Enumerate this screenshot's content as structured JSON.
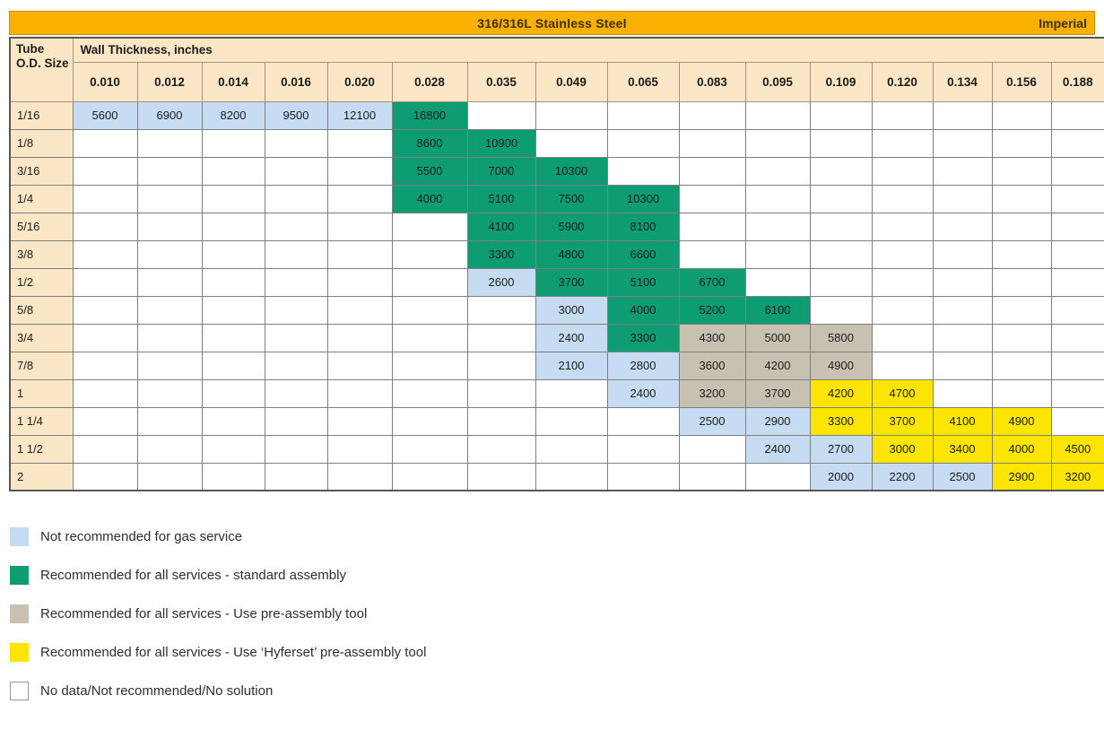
{
  "title_bar": {
    "title": "316/316L Stainless Steel",
    "units_label": "Imperial"
  },
  "table": {
    "corner_label": "Tube O.D. Size",
    "group_label": "Wall Thickness, inches",
    "columns": [
      "0.010",
      "0.012",
      "0.014",
      "0.016",
      "0.020",
      "0.028",
      "0.035",
      "0.049",
      "0.065",
      "0.083",
      "0.095",
      "0.109",
      "0.120",
      "0.134",
      "0.156",
      "0.188"
    ],
    "rows": [
      {
        "label": "1/16",
        "cells": [
          {
            "v": "5600",
            "t": "gas"
          },
          {
            "v": "6900",
            "t": "gas"
          },
          {
            "v": "8200",
            "t": "gas"
          },
          {
            "v": "9500",
            "t": "gas"
          },
          {
            "v": "12100",
            "t": "gas"
          },
          {
            "v": "16800",
            "t": "std"
          },
          null,
          null,
          null,
          null,
          null,
          null,
          null,
          null,
          null,
          null
        ]
      },
      {
        "label": "1/8",
        "cells": [
          null,
          null,
          null,
          null,
          null,
          {
            "v": "8600",
            "t": "std"
          },
          {
            "v": "10900",
            "t": "std"
          },
          null,
          null,
          null,
          null,
          null,
          null,
          null,
          null,
          null
        ]
      },
      {
        "label": "3/16",
        "cells": [
          null,
          null,
          null,
          null,
          null,
          {
            "v": "5500",
            "t": "std"
          },
          {
            "v": "7000",
            "t": "std"
          },
          {
            "v": "10300",
            "t": "std"
          },
          null,
          null,
          null,
          null,
          null,
          null,
          null,
          null
        ]
      },
      {
        "label": "1/4",
        "cells": [
          null,
          null,
          null,
          null,
          null,
          {
            "v": "4000",
            "t": "std"
          },
          {
            "v": "5100",
            "t": "std"
          },
          {
            "v": "7500",
            "t": "std"
          },
          {
            "v": "10300",
            "t": "std"
          },
          null,
          null,
          null,
          null,
          null,
          null,
          null
        ]
      },
      {
        "label": "5/16",
        "cells": [
          null,
          null,
          null,
          null,
          null,
          null,
          {
            "v": "4100",
            "t": "std"
          },
          {
            "v": "5900",
            "t": "std"
          },
          {
            "v": "8100",
            "t": "std"
          },
          null,
          null,
          null,
          null,
          null,
          null,
          null
        ]
      },
      {
        "label": "3/8",
        "cells": [
          null,
          null,
          null,
          null,
          null,
          null,
          {
            "v": "3300",
            "t": "std"
          },
          {
            "v": "4800",
            "t": "std"
          },
          {
            "v": "6600",
            "t": "std"
          },
          null,
          null,
          null,
          null,
          null,
          null,
          null
        ]
      },
      {
        "label": "1/2",
        "cells": [
          null,
          null,
          null,
          null,
          null,
          null,
          {
            "v": "2600",
            "t": "gas"
          },
          {
            "v": "3700",
            "t": "std"
          },
          {
            "v": "5100",
            "t": "std"
          },
          {
            "v": "6700",
            "t": "std"
          },
          null,
          null,
          null,
          null,
          null,
          null
        ]
      },
      {
        "label": "5/8",
        "cells": [
          null,
          null,
          null,
          null,
          null,
          null,
          null,
          {
            "v": "3000",
            "t": "gas"
          },
          {
            "v": "4000",
            "t": "std"
          },
          {
            "v": "5200",
            "t": "std"
          },
          {
            "v": "6100",
            "t": "std"
          },
          null,
          null,
          null,
          null,
          null
        ]
      },
      {
        "label": "3/4",
        "cells": [
          null,
          null,
          null,
          null,
          null,
          null,
          null,
          {
            "v": "2400",
            "t": "gas"
          },
          {
            "v": "3300",
            "t": "std"
          },
          {
            "v": "4300",
            "t": "pre"
          },
          {
            "v": "5000",
            "t": "pre"
          },
          {
            "v": "5800",
            "t": "pre"
          },
          null,
          null,
          null,
          null
        ]
      },
      {
        "label": "7/8",
        "cells": [
          null,
          null,
          null,
          null,
          null,
          null,
          null,
          {
            "v": "2100",
            "t": "gas"
          },
          {
            "v": "2800",
            "t": "gas"
          },
          {
            "v": "3600",
            "t": "pre"
          },
          {
            "v": "4200",
            "t": "pre"
          },
          {
            "v": "4900",
            "t": "pre"
          },
          null,
          null,
          null,
          null
        ]
      },
      {
        "label": "1",
        "cells": [
          null,
          null,
          null,
          null,
          null,
          null,
          null,
          null,
          {
            "v": "2400",
            "t": "gas"
          },
          {
            "v": "3200",
            "t": "pre"
          },
          {
            "v": "3700",
            "t": "pre"
          },
          {
            "v": "4200",
            "t": "hyf"
          },
          {
            "v": "4700",
            "t": "hyf"
          },
          null,
          null,
          null
        ]
      },
      {
        "label": "1 1/4",
        "cells": [
          null,
          null,
          null,
          null,
          null,
          null,
          null,
          null,
          null,
          {
            "v": "2500",
            "t": "gas"
          },
          {
            "v": "2900",
            "t": "gas"
          },
          {
            "v": "3300",
            "t": "hyf"
          },
          {
            "v": "3700",
            "t": "hyf"
          },
          {
            "v": "4100",
            "t": "hyf"
          },
          {
            "v": "4900",
            "t": "hyf"
          },
          null
        ]
      },
      {
        "label": "1 1/2",
        "cells": [
          null,
          null,
          null,
          null,
          null,
          null,
          null,
          null,
          null,
          null,
          {
            "v": "2400",
            "t": "gas"
          },
          {
            "v": "2700",
            "t": "gas"
          },
          {
            "v": "3000",
            "t": "hyf"
          },
          {
            "v": "3400",
            "t": "hyf"
          },
          {
            "v": "4000",
            "t": "hyf"
          },
          {
            "v": "4500",
            "t": "hyf"
          }
        ]
      },
      {
        "label": "2",
        "cells": [
          null,
          null,
          null,
          null,
          null,
          null,
          null,
          null,
          null,
          null,
          null,
          {
            "v": "2000",
            "t": "gas"
          },
          {
            "v": "2200",
            "t": "gas"
          },
          {
            "v": "2500",
            "t": "gas"
          },
          {
            "v": "2900",
            "t": "hyf"
          },
          {
            "v": "3200",
            "t": "hyf"
          }
        ]
      }
    ]
  },
  "legend": {
    "items": [
      {
        "type": "gas",
        "label": "Not recommended for gas service"
      },
      {
        "type": "std",
        "label": "Recommended for all services - standard assembly"
      },
      {
        "type": "pre",
        "label": "Recommended for all services -  Use pre-assembly tool"
      },
      {
        "type": "hyf",
        "label": "Recommended for all services - Use ‘Hyferset’ pre-assembly tool"
      },
      {
        "type": "none",
        "label": "No data/Not recommended/No solution"
      }
    ]
  },
  "colors": {
    "title_bar_orange": "#F9B000",
    "title_text": "#3D3000",
    "header_beige": "#FBE7C5",
    "not_recommended_gas_blue": "#C5DCF2",
    "standard_assembly_green": "#0E9D72",
    "pre_assembly_tool_tan": "#C8C0B0",
    "hyferset_tool_yellow": "#FCE500",
    "no_data_white": "#FFFFFF"
  }
}
